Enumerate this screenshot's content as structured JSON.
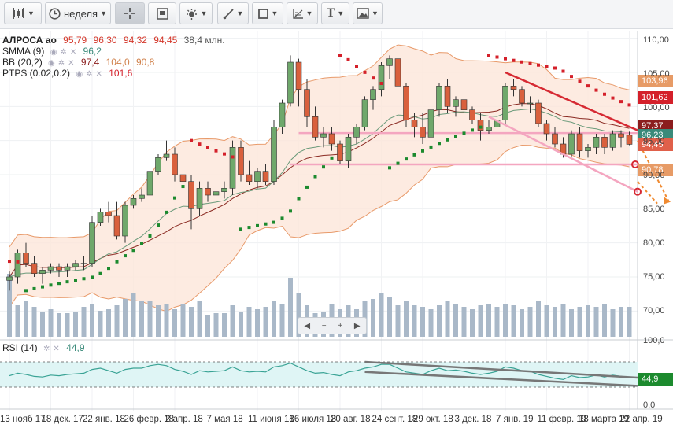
{
  "toolbar": {
    "interval_label": "неделя",
    "buttons": [
      "chart-type",
      "interval",
      "crosshair",
      "zoom-box",
      "indicators",
      "line-tools",
      "shapes",
      "fib-tools",
      "text-tool",
      "image-tool"
    ]
  },
  "legend": {
    "instrument": "АЛРОСА ао",
    "open": "95,79",
    "high": "96,30",
    "low": "94,32",
    "close": "94,45",
    "volume": "38,4 млн.",
    "sma_label": "SMMA (9)",
    "sma_value": "96,2",
    "bb_label": "BB (20,2)",
    "bb_mid": "97,4",
    "bb_up": "104,0",
    "bb_low": "90,8",
    "ptps_label": "PTPS (0.02,0.2)",
    "ptps_value": "101,6",
    "rsi_label": "RSI (14)",
    "rsi_value": "44,9"
  },
  "colors": {
    "up": "#6fa86b",
    "down": "#d9603d",
    "bb_fill": "#fde6da",
    "bb_line": "#e89a6a",
    "mid_line": "#8a2a22",
    "smma_line": "#6a9a7a",
    "ptps_down": "#d4202a",
    "ptps_up": "#1c8a2e",
    "volume": "#a9b8c8",
    "rsi_line": "#3aa395",
    "rsi_fill": "#dff5f5",
    "trend_red": "#d62a33",
    "trend_pink": "#f4a6c0",
    "trend_gray": "#777777"
  },
  "price_tags": [
    {
      "text": "103,96",
      "bg": "#e79b66"
    },
    {
      "text": "101,62",
      "bg": "#d4202a"
    },
    {
      "text": "97,37",
      "bg": "#8b1d1d"
    },
    {
      "text": "96,23",
      "bg": "#3a8a7a"
    },
    {
      "text": "94,45",
      "bg": "#e0604a"
    },
    {
      "text": "90,78",
      "bg": "#e79b66"
    },
    {
      "text": "44,9",
      "bg": "#1c8a2e"
    }
  ],
  "chart_data": {
    "type": "candlestick",
    "y_ticks": [
      "110,00",
      "105,00",
      "100,00",
      "95,00",
      "90,00",
      "85,00",
      "80,00",
      "75,00",
      "70,00"
    ],
    "ylim": [
      66,
      111
    ],
    "rsi_ticks": [
      "100,0",
      "0,0"
    ],
    "x_ticks": [
      "13 нояб 17",
      "18 дек. 17",
      "22 янв. 18",
      "26 февр. 18",
      "2 апр. 18",
      "7 мая 18",
      "11 июня 18",
      "16 июля 18",
      "20 авг. 18",
      "24 сент. 18",
      "29 окт. 18",
      "3 дек. 18",
      "7 янв. 19",
      "11 февр. 19",
      "18 марта 19",
      "22 апр. 19"
    ],
    "x_tick_index": [
      0,
      5,
      10,
      15,
      20,
      25,
      30,
      35,
      40,
      45,
      50,
      55,
      60,
      65,
      70,
      75
    ],
    "candles": [
      [
        74.5,
        75.8,
        73.0,
        75.0
      ],
      [
        75.0,
        79.0,
        74.0,
        78.5
      ],
      [
        78.5,
        80.0,
        76.5,
        77.0
      ],
      [
        77.0,
        78.0,
        75.0,
        75.5
      ],
      [
        75.5,
        76.5,
        74.0,
        76.0
      ],
      [
        76.0,
        77.0,
        75.5,
        76.5
      ],
      [
        76.5,
        77.0,
        75.0,
        76.0
      ],
      [
        76.0,
        77.0,
        75.0,
        76.5
      ],
      [
        76.5,
        77.5,
        76.0,
        77.0
      ],
      [
        77.0,
        78.0,
        76.0,
        77.0
      ],
      [
        77.0,
        84.0,
        76.5,
        83.0
      ],
      [
        83.0,
        85.0,
        82.5,
        84.5
      ],
      [
        84.5,
        86.0,
        83.0,
        84.0
      ],
      [
        84.0,
        86.0,
        80.5,
        81.0
      ],
      [
        81.0,
        86.0,
        80.0,
        85.5
      ],
      [
        85.5,
        87.0,
        85.0,
        86.5
      ],
      [
        86.5,
        88.0,
        86.0,
        87.0
      ],
      [
        87.0,
        91.0,
        86.5,
        90.5
      ],
      [
        90.5,
        93.0,
        90.0,
        92.5
      ],
      [
        92.5,
        95.0,
        92.0,
        93.0
      ],
      [
        93.0,
        94.0,
        89.0,
        90.0
      ],
      [
        90.0,
        91.0,
        88.0,
        89.0
      ],
      [
        89.0,
        90.0,
        82.0,
        85.0
      ],
      [
        85.0,
        89.0,
        84.0,
        88.0
      ],
      [
        88.0,
        89.0,
        86.0,
        87.0
      ],
      [
        87.0,
        88.0,
        86.0,
        87.5
      ],
      [
        87.5,
        89.0,
        86.5,
        88.0
      ],
      [
        88.0,
        95.0,
        87.0,
        94.0
      ],
      [
        94.0,
        95.0,
        89.0,
        90.0
      ],
      [
        90.0,
        92.0,
        88.5,
        89.0
      ],
      [
        89.0,
        91.0,
        88.0,
        90.5
      ],
      [
        90.5,
        91.5,
        88.5,
        89.0
      ],
      [
        89.0,
        98.0,
        88.5,
        97.0
      ],
      [
        97.0,
        101.0,
        96.0,
        100.5
      ],
      [
        100.5,
        107.5,
        100.0,
        106.5
      ],
      [
        106.5,
        107.0,
        100.0,
        102.5
      ],
      [
        102.5,
        104.0,
        97.0,
        98.5
      ],
      [
        98.5,
        100.0,
        95.0,
        95.5
      ],
      [
        95.5,
        97.0,
        94.0,
        96.0
      ],
      [
        96.0,
        97.0,
        93.5,
        94.5
      ],
      [
        94.5,
        95.0,
        91.5,
        92.0
      ],
      [
        92.0,
        96.0,
        91.0,
        95.5
      ],
      [
        95.5,
        97.5,
        94.5,
        97.0
      ],
      [
        97.0,
        101.5,
        96.5,
        101.0
      ],
      [
        101.0,
        103.0,
        99.5,
        102.5
      ],
      [
        102.5,
        106.5,
        101.5,
        106.0
      ],
      [
        106.0,
        107.5,
        104.0,
        107.0
      ],
      [
        107.0,
        107.5,
        102.0,
        103.0
      ],
      [
        103.0,
        103.5,
        97.0,
        98.0
      ],
      [
        98.0,
        99.0,
        95.5,
        97.0
      ],
      [
        97.0,
        99.0,
        94.5,
        95.5
      ],
      [
        95.5,
        100.0,
        95.0,
        99.5
      ],
      [
        99.5,
        103.5,
        98.5,
        103.0
      ],
      [
        103.0,
        104.0,
        99.0,
        100.0
      ],
      [
        100.0,
        101.5,
        98.5,
        101.0
      ],
      [
        101.0,
        101.5,
        99.0,
        99.5
      ],
      [
        99.5,
        100.0,
        97.5,
        98.0
      ],
      [
        98.0,
        99.0,
        95.0,
        96.5
      ],
      [
        96.5,
        98.0,
        96.0,
        97.0
      ],
      [
        97.0,
        99.0,
        95.5,
        98.0
      ],
      [
        98.0,
        103.5,
        97.5,
        103.0
      ],
      [
        103.0,
        104.0,
        101.5,
        102.5
      ],
      [
        102.5,
        103.0,
        100.0,
        100.5
      ],
      [
        100.5,
        101.5,
        99.0,
        100.5
      ],
      [
        100.5,
        101.0,
        97.0,
        97.5
      ],
      [
        97.5,
        98.0,
        95.0,
        96.0
      ],
      [
        96.0,
        97.0,
        94.0,
        94.5
      ],
      [
        94.5,
        95.5,
        92.5,
        93.0
      ],
      [
        93.0,
        96.5,
        92.5,
        96.0
      ],
      [
        96.0,
        97.0,
        92.5,
        93.5
      ],
      [
        93.5,
        94.5,
        92.5,
        94.0
      ],
      [
        94.0,
        96.0,
        93.0,
        95.5
      ],
      [
        95.5,
        96.0,
        93.0,
        94.0
      ],
      [
        94.0,
        96.5,
        93.5,
        96.0
      ],
      [
        96.0,
        96.5,
        94.0,
        95.5
      ],
      [
        95.79,
        96.3,
        94.32,
        94.45
      ]
    ],
    "volume": [
      80,
      40,
      45,
      38,
      32,
      35,
      30,
      30,
      32,
      38,
      42,
      33,
      35,
      40,
      48,
      55,
      45,
      45,
      40,
      42,
      35,
      42,
      38,
      45,
      28,
      30,
      30,
      40,
      32,
      38,
      35,
      38,
      45,
      42,
      75,
      55,
      40,
      30,
      32,
      42,
      35,
      40,
      35,
      45,
      48,
      55,
      50,
      40,
      45,
      40,
      38,
      35,
      40,
      45,
      42,
      38,
      35,
      40,
      42,
      38,
      42,
      40,
      35,
      38,
      45,
      40,
      38,
      42,
      35,
      38,
      40,
      38,
      42,
      35,
      38,
      38
    ],
    "rsi": [
      48,
      52,
      50,
      47,
      46,
      49,
      48,
      50,
      51,
      52,
      58,
      60,
      56,
      52,
      58,
      60,
      60,
      64,
      66,
      64,
      58,
      55,
      50,
      56,
      54,
      55,
      56,
      62,
      56,
      54,
      55,
      54,
      62,
      64,
      68,
      62,
      56,
      52,
      53,
      50,
      48,
      54,
      56,
      60,
      62,
      66,
      66,
      60,
      54,
      52,
      50,
      56,
      60,
      56,
      57,
      55,
      52,
      50,
      52,
      55,
      62,
      60,
      56,
      55,
      50,
      47,
      44,
      42,
      48,
      45,
      46,
      49,
      46,
      49,
      47,
      44.9
    ]
  }
}
